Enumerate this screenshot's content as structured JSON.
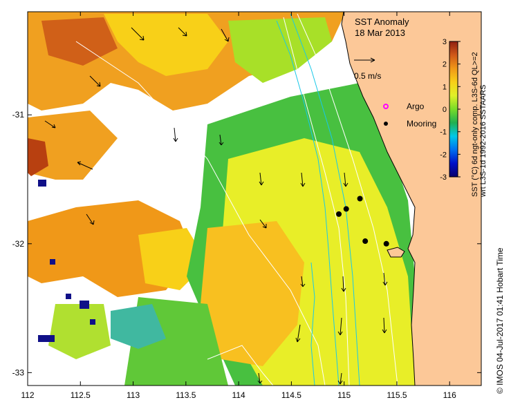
{
  "title": {
    "line1": "SST Anomaly",
    "line2": "18 Mar 2013"
  },
  "velocity_scale": {
    "label": "0.5 m/s",
    "value_mps": 0.5
  },
  "legend": {
    "argo_label": "Argo",
    "mooring_label": "Mooring",
    "argo_color": "#ff00ff",
    "mooring_color": "#000000"
  },
  "colorbar": {
    "label_line1": "SST (°C) 6d ngt-only comp. L3S-6d QL>=2",
    "label_line2": "wrt L3S-1d 1992-2016 SSTAARS",
    "min": -3,
    "max": 3,
    "ticks": [
      "3",
      "2",
      "1",
      "0",
      "-1",
      "-2",
      "-3"
    ],
    "stops": [
      "#08006b",
      "#0010c8",
      "#0070f0",
      "#00c8e8",
      "#20b050",
      "#78dc28",
      "#e0f028",
      "#f8d018",
      "#f09818",
      "#d05818",
      "#902010"
    ]
  },
  "axes": {
    "x_ticks": [
      "112",
      "112.5",
      "113",
      "113.5",
      "114",
      "114.5",
      "115",
      "115.5",
      "116"
    ],
    "x_values": [
      112,
      112.5,
      113,
      113.5,
      114,
      114.5,
      115,
      115.5,
      116
    ],
    "x_range": [
      112,
      116.3
    ],
    "y_ticks": [
      "-31",
      "-32",
      "-33"
    ],
    "y_values": [
      -31,
      -32,
      -33
    ],
    "y_range": [
      -33.1,
      -30.2
    ]
  },
  "moorings": [
    {
      "lon": 114.95,
      "lat": -31.77
    },
    {
      "lon": 115.02,
      "lat": -31.73
    },
    {
      "lon": 115.15,
      "lat": -31.65
    },
    {
      "lon": 115.2,
      "lat": -31.98
    },
    {
      "lon": 115.4,
      "lat": -32.0
    }
  ],
  "credit": "© IMOS 04-Jul-2017 01:41 Hobart Time",
  "colors": {
    "land": "#fcc898",
    "no_data": "#ffffff",
    "bathymetry_contour": "#ffffff",
    "current_line": "#18c8e8"
  }
}
